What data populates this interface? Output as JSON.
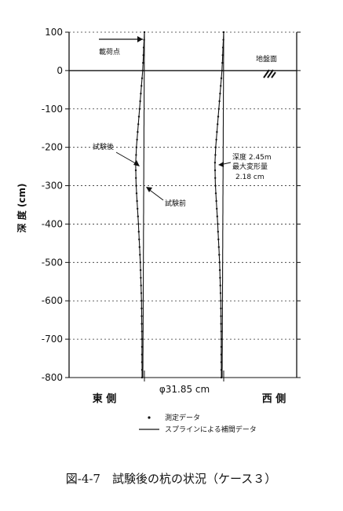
{
  "chart_data": {
    "type": "line",
    "title": "",
    "ylabel": "深 度 (cm)",
    "ylim": [
      -800,
      100
    ],
    "yticks": [
      "100",
      "0",
      "-100",
      "-200",
      "-300",
      "-400",
      "-500",
      "-600",
      "-700",
      "-800"
    ],
    "ytick_values": [
      100,
      0,
      -100,
      -200,
      -300,
      -400,
      -500,
      -600,
      -700,
      -800
    ],
    "grid": "dotted horizontal",
    "series": [
      {
        "name": "試験前",
        "depth": [
          100,
          0,
          -100,
          -200,
          -300,
          -400,
          -500,
          -600,
          -700,
          -800
        ],
        "x_offset": [
          0,
          0,
          0,
          0,
          0,
          0,
          0,
          0,
          0,
          0
        ]
      },
      {
        "name": "試験後",
        "depth": [
          100,
          0,
          -100,
          -200,
          -245,
          -300,
          -400,
          -500,
          -600,
          -700,
          -800
        ],
        "x_offset": [
          0,
          -0.4,
          -1.2,
          -2.0,
          -2.18,
          -2.0,
          -1.3,
          -0.7,
          -0.3,
          -0.1,
          0
        ]
      }
    ],
    "annotations": {
      "load_point": "載荷点",
      "ground_surface": "地盤面",
      "after_test": "試験後",
      "before_test": "試験前",
      "max_deform_line1": "深度 2.45m",
      "max_deform_line2": "最大変形量",
      "max_deform_line3": "2.18 cm",
      "diameter": "φ31.85 cm",
      "east_side": "東 側",
      "west_side": "西 側"
    },
    "legend": {
      "position": "bottom",
      "items": [
        {
          "symbol": "dot",
          "label": "測定データ"
        },
        {
          "symbol": "line",
          "label": "スプラインによる補間データ"
        }
      ]
    }
  },
  "caption": "図-4-7　試験後の杭の状況（ケース３）"
}
